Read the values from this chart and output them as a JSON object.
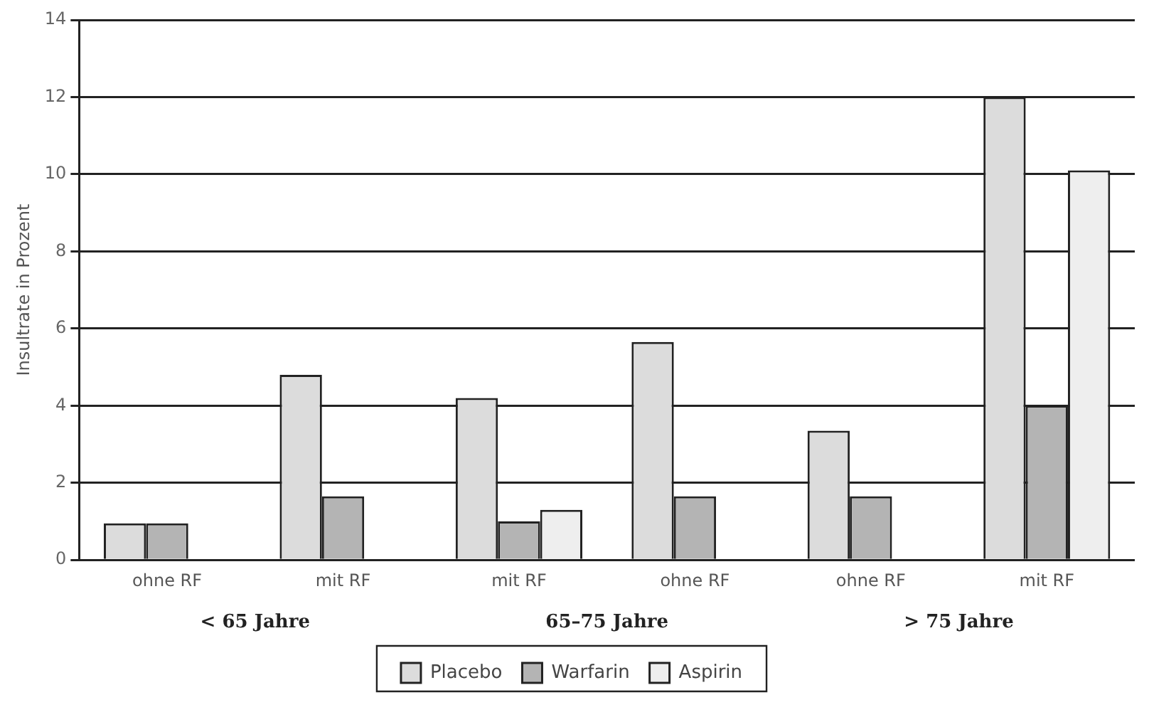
{
  "chart_data": {
    "type": "bar",
    "ylabel": "Insultrate in Prozent",
    "categories": [
      "ohne RF",
      "mit RF",
      "mit RF",
      "ohne RF",
      "ohne RF",
      "mit RF"
    ],
    "series": [
      {
        "name": "Placebo",
        "color": "#dcdcdc",
        "values": [
          0.95,
          4.8,
          4.2,
          5.65,
          3.35,
          12
        ]
      },
      {
        "name": "Warfarin",
        "color": "#b4b4b4",
        "values": [
          0.95,
          1.65,
          1,
          1.65,
          1.65,
          4
        ]
      },
      {
        "name": "Aspirin",
        "color": "#eeeeee",
        "values": [
          null,
          null,
          1.3,
          null,
          null,
          10.1
        ]
      }
    ],
    "annotations": [
      "< 65 Jahre",
      "65–75 Jahre",
      "> 75 Jahre"
    ],
    "ylim": [
      0,
      14
    ],
    "yticks": [
      0,
      2,
      4,
      6,
      8,
      10,
      12,
      14
    ],
    "grid": "y",
    "legend": "bottom"
  }
}
